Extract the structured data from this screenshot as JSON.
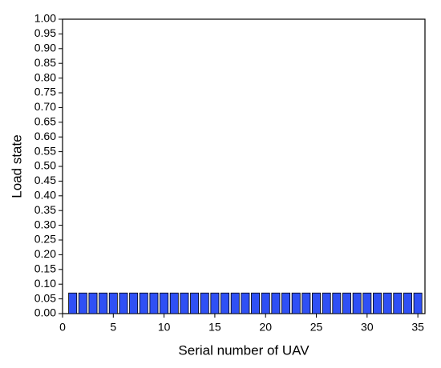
{
  "chart_data": {
    "type": "bar",
    "x_label": "Serial number of UAV",
    "y_label": "Load state",
    "x": [
      1,
      2,
      3,
      4,
      5,
      6,
      7,
      8,
      9,
      10,
      11,
      12,
      13,
      14,
      15,
      16,
      17,
      18,
      19,
      20,
      21,
      22,
      23,
      24,
      25,
      26,
      27,
      28,
      29,
      30,
      31,
      32,
      33,
      34,
      35
    ],
    "values": [
      0.07,
      0.07,
      0.07,
      0.07,
      0.07,
      0.07,
      0.07,
      0.07,
      0.07,
      0.07,
      0.07,
      0.07,
      0.07,
      0.07,
      0.07,
      0.07,
      0.07,
      0.07,
      0.07,
      0.07,
      0.07,
      0.07,
      0.07,
      0.07,
      0.07,
      0.07,
      0.07,
      0.07,
      0.07,
      0.07,
      0.07,
      0.07,
      0.07,
      0.07,
      0.07
    ],
    "color": "#2f50f5",
    "xlim": [
      0,
      35.7
    ],
    "xticks": [
      0,
      5,
      10,
      15,
      20,
      25,
      30,
      35
    ],
    "ylim": [
      0,
      1
    ],
    "yticks": [
      {
        "value": 0,
        "label": "0.00"
      },
      {
        "value": 0.05,
        "label": "0.05"
      },
      {
        "value": 0.1,
        "label": "0.10"
      },
      {
        "value": 0.15,
        "label": "0.15"
      },
      {
        "value": 0.2,
        "label": "0.20"
      },
      {
        "value": 0.25,
        "label": "0.25"
      },
      {
        "value": 0.3,
        "label": "0.30"
      },
      {
        "value": 0.35,
        "label": "0.35"
      },
      {
        "value": 0.4,
        "label": "0.40"
      },
      {
        "value": 0.45,
        "label": "0.45"
      },
      {
        "value": 0.5,
        "label": "0.50"
      },
      {
        "value": 0.55,
        "label": "0.55"
      },
      {
        "value": 0.6,
        "label": "0.60"
      },
      {
        "value": 0.65,
        "label": "0.65"
      },
      {
        "value": 0.7,
        "label": "0.70"
      },
      {
        "value": 0.75,
        "label": "0.75"
      },
      {
        "value": 0.8,
        "label": "0.80"
      },
      {
        "value": 0.85,
        "label": "0.85"
      },
      {
        "value": 0.9,
        "label": "0.90"
      },
      {
        "value": 0.95,
        "label": "0.95"
      },
      {
        "value": 1,
        "label": "1.00"
      }
    ],
    "grid": false
  }
}
